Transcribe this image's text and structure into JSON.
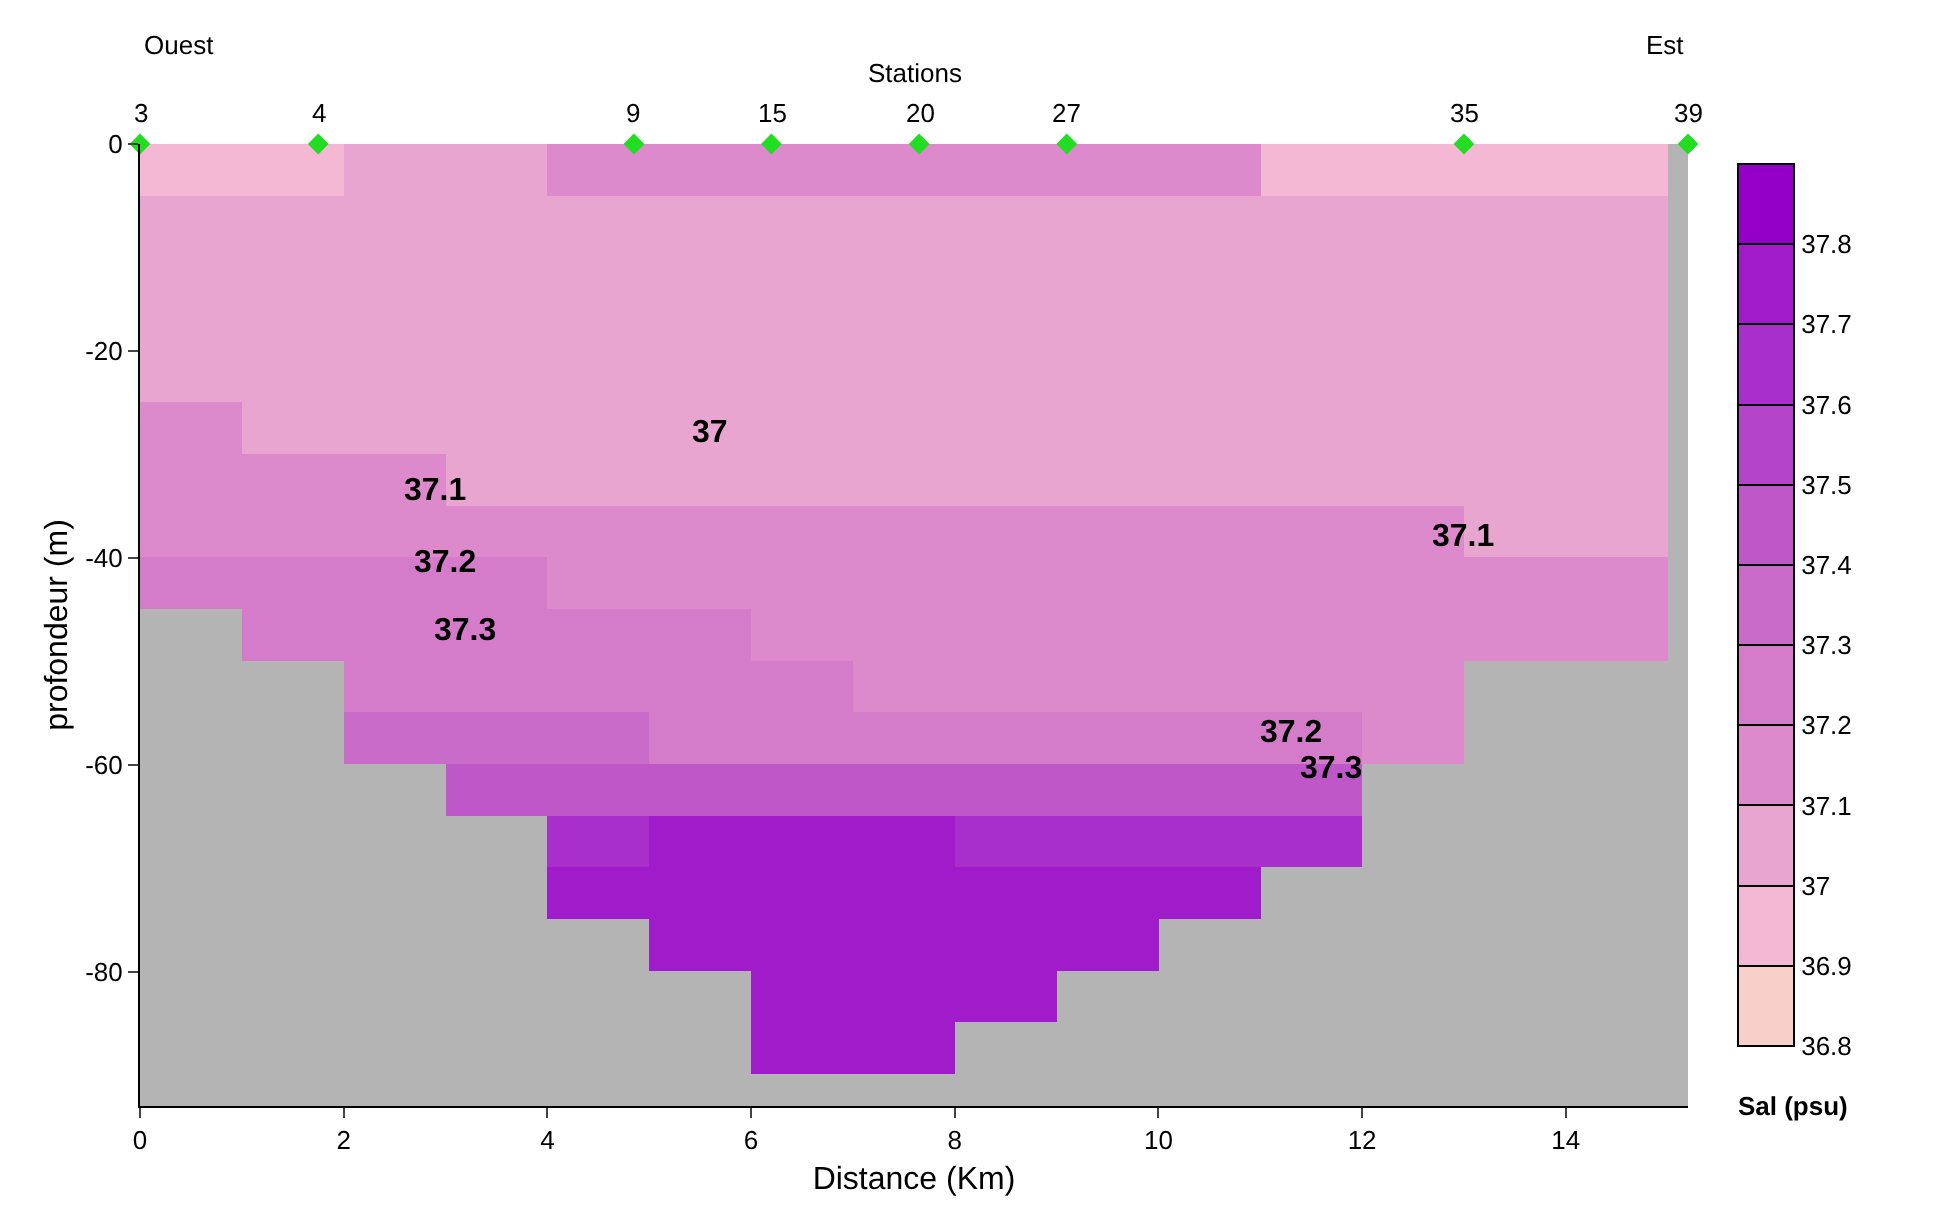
{
  "chart_data": {
    "type": "heatmap",
    "xlabel": "Distance (Km)",
    "ylabel": "profondeur (m)",
    "clabel": "Sal (psu)",
    "x": [
      0.5,
      1.5,
      2.5,
      3.5,
      4.5,
      5.5,
      6.5,
      7.5,
      8.5,
      9.5,
      10.5,
      11.5,
      12.5,
      13.5,
      14.5
    ],
    "y": [
      -2.5,
      -7.5,
      -12.5,
      -17.5,
      -22.5,
      -27.5,
      -32.5,
      -37.5,
      -42.5,
      -47.5,
      -52.5,
      -57.5,
      -62.5,
      -67.5,
      -72.5,
      -77.5,
      -82.5,
      -87.5
    ],
    "cells": [
      [
        36.95,
        36.95,
        37.05,
        37.05,
        37.15,
        37.15,
        37.15,
        37.15,
        37.15,
        37.15,
        37.15,
        36.95,
        36.95,
        36.95,
        36.95
      ],
      [
        37.05,
        37.05,
        37.05,
        37.05,
        37.05,
        37.05,
        37.05,
        37.05,
        37.05,
        37.05,
        37.05,
        37.05,
        37.05,
        37.05,
        37.05
      ],
      [
        37.05,
        37.05,
        37.05,
        37.05,
        37.05,
        37.05,
        37.05,
        37.05,
        37.05,
        37.05,
        37.05,
        37.05,
        37.05,
        37.05,
        37.05
      ],
      [
        37.05,
        37.05,
        37.05,
        37.05,
        37.05,
        37.05,
        37.05,
        37.05,
        37.05,
        37.05,
        37.05,
        37.05,
        37.05,
        37.05,
        37.05
      ],
      [
        37.05,
        37.05,
        37.05,
        37.05,
        37.05,
        37.05,
        37.05,
        37.05,
        37.05,
        37.05,
        37.05,
        37.05,
        37.05,
        37.05,
        37.05
      ],
      [
        37.15,
        37.05,
        37.05,
        37.05,
        37.05,
        37.05,
        37.05,
        37.05,
        37.05,
        37.05,
        37.05,
        37.05,
        37.05,
        37.05,
        37.05
      ],
      [
        37.15,
        37.15,
        37.15,
        37.05,
        37.05,
        37.05,
        37.05,
        37.05,
        37.05,
        37.05,
        37.05,
        37.05,
        37.05,
        37.05,
        37.05
      ],
      [
        37.15,
        37.15,
        37.15,
        37.15,
        37.15,
        37.15,
        37.15,
        37.15,
        37.15,
        37.15,
        37.15,
        37.15,
        37.15,
        37.05,
        37.05
      ],
      [
        37.25,
        37.25,
        37.25,
        37.25,
        37.15,
        37.15,
        37.15,
        37.15,
        37.15,
        37.15,
        37.15,
        37.15,
        37.15,
        37.15,
        37.15
      ],
      [
        null,
        37.25,
        37.25,
        37.25,
        37.25,
        37.25,
        37.15,
        37.15,
        37.15,
        37.15,
        37.15,
        37.15,
        37.15,
        37.15,
        37.15
      ],
      [
        null,
        null,
        37.25,
        37.25,
        37.25,
        37.25,
        37.25,
        37.15,
        37.15,
        37.15,
        37.15,
        37.15,
        37.15,
        null,
        null
      ],
      [
        null,
        null,
        37.35,
        37.35,
        37.35,
        37.25,
        37.25,
        37.25,
        37.25,
        37.25,
        37.25,
        37.25,
        37.15,
        null,
        null
      ],
      [
        null,
        null,
        null,
        37.45,
        37.45,
        37.45,
        37.45,
        37.45,
        37.45,
        37.45,
        37.45,
        37.45,
        null,
        null,
        null
      ],
      [
        null,
        null,
        null,
        null,
        37.65,
        37.75,
        37.75,
        37.75,
        37.65,
        37.65,
        37.65,
        37.65,
        null,
        null,
        null
      ],
      [
        null,
        null,
        null,
        null,
        37.75,
        37.75,
        37.75,
        37.75,
        37.75,
        37.75,
        37.75,
        null,
        null,
        null,
        null
      ],
      [
        null,
        null,
        null,
        null,
        null,
        37.75,
        37.75,
        37.75,
        37.75,
        37.75,
        null,
        null,
        null,
        null,
        null
      ],
      [
        null,
        null,
        null,
        null,
        null,
        null,
        37.75,
        37.75,
        37.75,
        null,
        null,
        null,
        null,
        null,
        null
      ],
      [
        null,
        null,
        null,
        null,
        null,
        null,
        37.75,
        37.75,
        null,
        null,
        null,
        null,
        null,
        null,
        null
      ]
    ],
    "colors": [
      "#f9cfc9",
      "#f4b8d4",
      "#e8a5d0",
      "#dc8acb",
      "#d47cca",
      "#c96bc8",
      "#be58c8",
      "#b445c9",
      "#a82fca",
      "#a01ccb",
      "#9400c8"
    ],
    "clim": [
      36.8,
      37.9
    ],
    "cticks": [
      36.8,
      36.9,
      37,
      37.1,
      37.2,
      37.3,
      37.4,
      37.5,
      37.6,
      37.7,
      37.8
    ],
    "xlim": [
      0,
      15.2
    ],
    "xticks": [
      0,
      2,
      4,
      6,
      8,
      10,
      12,
      14
    ],
    "ylim": [
      -93,
      0
    ],
    "yticks": [
      0,
      -20,
      -40,
      -60,
      -80
    ],
    "series": [
      {
        "type": "scatter",
        "color": "#22dd22",
        "x": [
          0,
          1.75,
          4.85,
          6.2,
          7.65,
          9.1,
          13,
          15.2
        ],
        "values": [
          0,
          0,
          0,
          0,
          0,
          0,
          0,
          0
        ]
      }
    ],
    "marker": "diamond",
    "annotations": [
      "Ouest",
      "Stations",
      "Est",
      "37",
      "37.1",
      "37.1",
      "37.2",
      "37.3",
      "37.2",
      "37.3",
      {
        "text": "3",
        "x": 0,
        "y": 0
      },
      {
        "text": "4",
        "x": 1.75,
        "y": 0
      },
      {
        "text": "9",
        "x": 4.85,
        "y": 0
      },
      {
        "text": "15",
        "x": 6.2,
        "y": 0
      },
      {
        "text": "20",
        "x": 7.65,
        "y": 0
      },
      {
        "text": "27",
        "x": 9.1,
        "y": 0
      },
      {
        "text": "35",
        "x": 13,
        "y": 0
      },
      {
        "text": "39",
        "x": 15.2,
        "y": 0
      }
    ],
    "grid": false
  }
}
